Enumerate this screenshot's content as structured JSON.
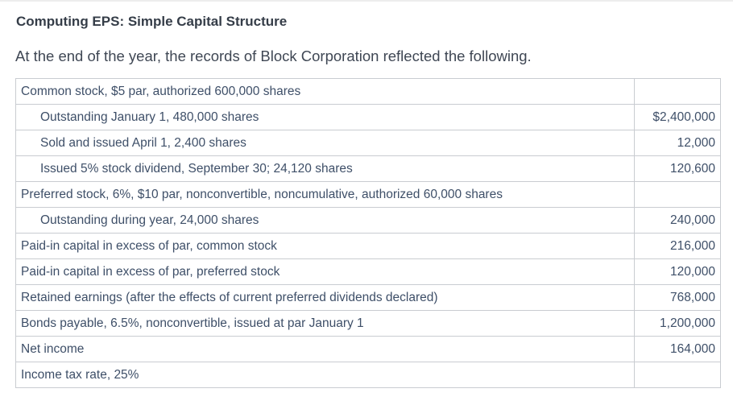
{
  "header": {
    "title": "Computing EPS: Simple Capital Structure",
    "subtitle": "At the end of the year, the records of Block Corporation reflected the following."
  },
  "records_table": {
    "rows": [
      {
        "label": "Common stock, $5 par, authorized 600,000 shares",
        "value": "",
        "indent": false
      },
      {
        "label": "Outstanding January 1, 480,000 shares",
        "value": "$2,400,000",
        "indent": true
      },
      {
        "label": "Sold and issued April 1, 2,400 shares",
        "value": "12,000",
        "indent": true
      },
      {
        "label": "Issued 5% stock dividend, September 30; 24,120 shares",
        "value": "120,600",
        "indent": true
      },
      {
        "label": "Preferred stock, 6%, $10 par, nonconvertible, noncumulative, authorized 60,000 shares",
        "value": "",
        "indent": false
      },
      {
        "label": "Outstanding during year, 24,000 shares",
        "value": "240,000",
        "indent": true
      },
      {
        "label": "Paid-in capital in excess of par, common stock",
        "value": "216,000",
        "indent": false
      },
      {
        "label": "Paid-in capital in excess of par, preferred stock",
        "value": "120,000",
        "indent": false
      },
      {
        "label": "Retained earnings (after the effects of current preferred dividends declared)",
        "value": "768,000",
        "indent": false
      },
      {
        "label": "Bonds payable, 6.5%, nonconvertible, issued at par January 1",
        "value": "1,200,000",
        "indent": false
      },
      {
        "label": "Net income",
        "value": "164,000",
        "indent": false
      },
      {
        "label": "Income tax rate, 25%",
        "value": "",
        "indent": false
      }
    ]
  },
  "colors": {
    "table_text": "#3e4f68",
    "title_text": "#353d48",
    "body_text": "#3f4754",
    "border": "#c9ccd1"
  }
}
